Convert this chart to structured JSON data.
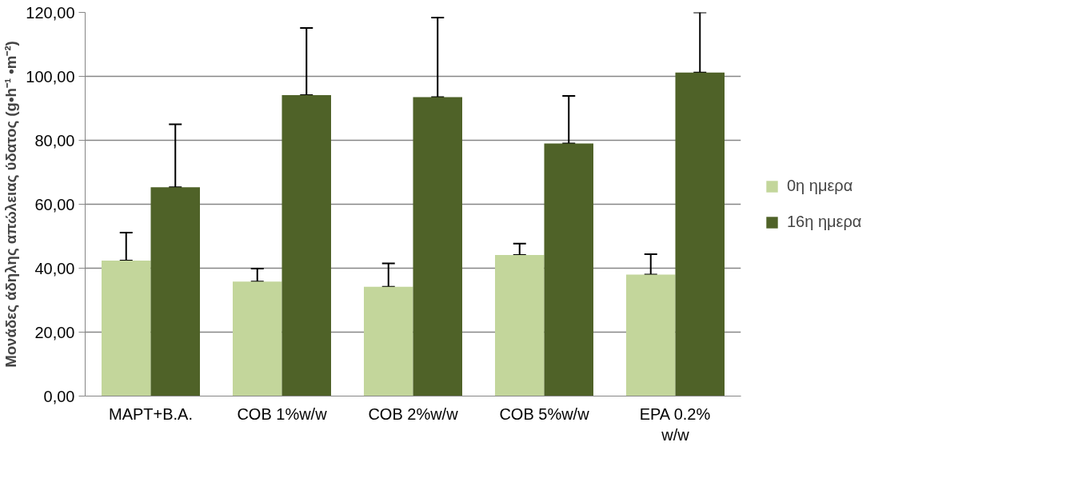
{
  "chart_data": {
    "type": "bar",
    "ylabel": "Μονάδες άδηλης απώλειας ύδατος (g•h⁻¹ •m⁻²)",
    "categories": [
      "MAPT+B.A.",
      "COB 1%w/w",
      "COB 2%w/w",
      "COB 5%w/w",
      "EPA 0.2% w/w"
    ],
    "series": [
      {
        "name": "0η ημερα",
        "color": "#c3d69b",
        "values": [
          42.4,
          35.8,
          34.2,
          44.1,
          38.0
        ],
        "errors": [
          [
            42.4,
            51.1
          ],
          [
            35.8,
            39.9
          ],
          [
            34.2,
            41.5
          ],
          [
            44.1,
            47.7
          ],
          [
            38.0,
            44.4
          ]
        ]
      },
      {
        "name": "16η ημερα",
        "color": "#4f6228",
        "values": [
          65.3,
          94.1,
          93.5,
          79.0,
          101.2
        ],
        "errors": [
          [
            65.3,
            85.0
          ],
          [
            94.1,
            115.1
          ],
          [
            93.5,
            118.4
          ],
          [
            79.0,
            93.9
          ],
          [
            101.2,
            120.0
          ]
        ]
      }
    ],
    "ylim": [
      0,
      120
    ],
    "yticks": [
      {
        "value": 0,
        "label": "0,00"
      },
      {
        "value": 20,
        "label": "20,00"
      },
      {
        "value": 40,
        "label": "40,00"
      },
      {
        "value": 60,
        "label": "60,00"
      },
      {
        "value": 80,
        "label": "80,00"
      },
      {
        "value": 100,
        "label": "100,00"
      },
      {
        "value": 120,
        "label": "120,00"
      }
    ],
    "grid": "y",
    "legend": "right"
  }
}
